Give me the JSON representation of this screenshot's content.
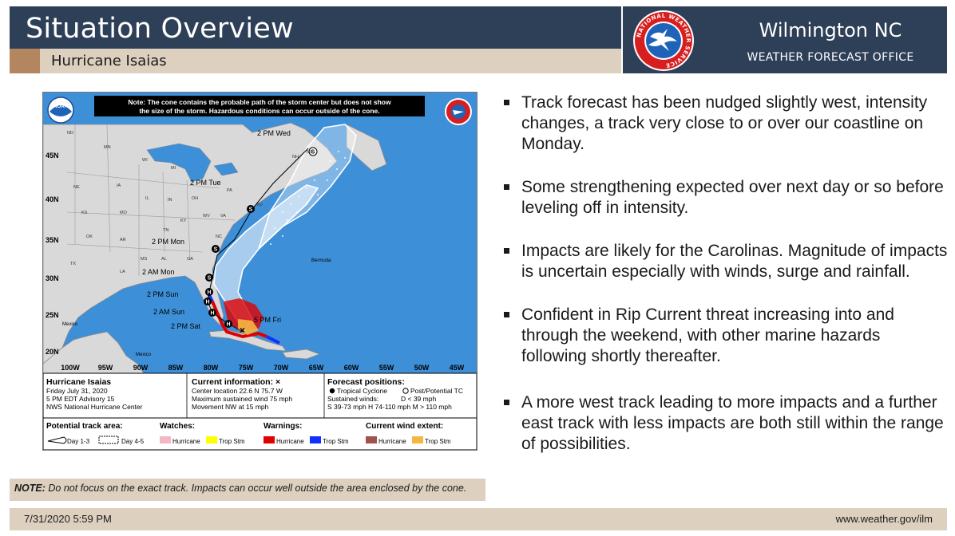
{
  "header": {
    "title": "Situation Overview",
    "subtitle": "Hurricane Isaias",
    "office_name": "Wilmington NC",
    "office_sub": "WEATHER FORECAST OFFICE",
    "logo_ring_text": "NATIONAL WEATHER SERVICE"
  },
  "map": {
    "note_line1": "Note: The cone contains the probable path of the storm center but does not show",
    "note_line2": "the size of the storm. Hazardous conditions can occur outside of the cone.",
    "noaa_label": "NOAA",
    "lat_labels": [
      "45N",
      "40N",
      "35N",
      "30N",
      "25N",
      "20N"
    ],
    "lon_labels": [
      "100W",
      "95W",
      "90W",
      "85W",
      "80W",
      "75W",
      "70W",
      "65W",
      "60W",
      "55W",
      "50W",
      "45W"
    ],
    "track_labels": [
      "2 PM Wed",
      "2 PM Tue",
      "2 PM Mon",
      "2 AM Mon",
      "2 PM Sun",
      "2 AM Sun",
      "2 PM Sat",
      "5 PM Fri"
    ],
    "point_letters": {
      "storm": "S",
      "hurricane": "H"
    },
    "places": [
      "Bermuda",
      "Mexico",
      "Mexico"
    ],
    "state_labels": [
      "ND",
      "MN",
      "WI",
      "ME",
      "NH",
      "MI",
      "NE",
      "IA",
      "IL",
      "IN",
      "OH",
      "PA",
      "NJ",
      "KS",
      "MO",
      "KY",
      "WV",
      "VA",
      "OK",
      "AR",
      "TN",
      "NC",
      "TX",
      "LA",
      "MS",
      "AL",
      "GA"
    ],
    "info": {
      "storm_name": "Hurricane Isaias",
      "date": "Friday July 31, 2020",
      "advisory": "5 PM EDT Advisory 15",
      "center": "NWS National Hurricane Center",
      "current_title": "Current information: ×",
      "location": "Center location 22.6 N 75.7 W",
      "max_wind": "Maximum sustained wind 75 mph",
      "movement": "Movement NW at 15 mph",
      "forecast_title": "Forecast positions:",
      "tc_legend": "Tropical Cyclone",
      "ptc_legend": "Post/Potential TC",
      "sustained": "Sustained winds:",
      "d_line": "D < 39 mph",
      "speed_line": "S 39-73 mph  H 74-110 mph  M > 110 mph"
    },
    "legend": {
      "track_area": "Potential track area:",
      "day13": "Day 1-3",
      "day45": "Day 4-5",
      "watches": "Watches:",
      "warnings": "Warnings:",
      "wind_extent": "Current wind extent:",
      "hurricane": "Hurricane",
      "trop_stm": "Trop Stm"
    },
    "colors": {
      "ocean": "#3d8fd8",
      "land": "#d9d9d9",
      "hurricane_watch": "#f4b6c2",
      "trop_watch": "#ffff00",
      "hurricane_warning": "#e00000",
      "trop_warning": "#1030ff",
      "hurricane_extent": "#a0524b",
      "trop_extent": "#f5b642"
    }
  },
  "bullets": [
    "Track forecast has been nudged slightly west, intensity changes,  a track very close to or over our coastline on Monday.",
    "Some strengthening expected over next day or so before leveling off in intensity.",
    "Impacts are likely for the Carolinas. Magnitude of impacts is uncertain especially with winds, surge and rainfall.",
    "Confident in Rip Current threat increasing into and through the weekend, with other marine hazards following shortly thereafter.",
    "A more west track leading to more impacts and a further east track with less impacts are both still within the range of possibilities."
  ],
  "note": {
    "label": "NOTE:",
    "text": "Do not focus on the exact track. Impacts can occur well outside the area enclosed by the cone."
  },
  "footer": {
    "timestamp": "7/31/2020 5:59 PM",
    "url": "www.weather.gov/ilm"
  }
}
